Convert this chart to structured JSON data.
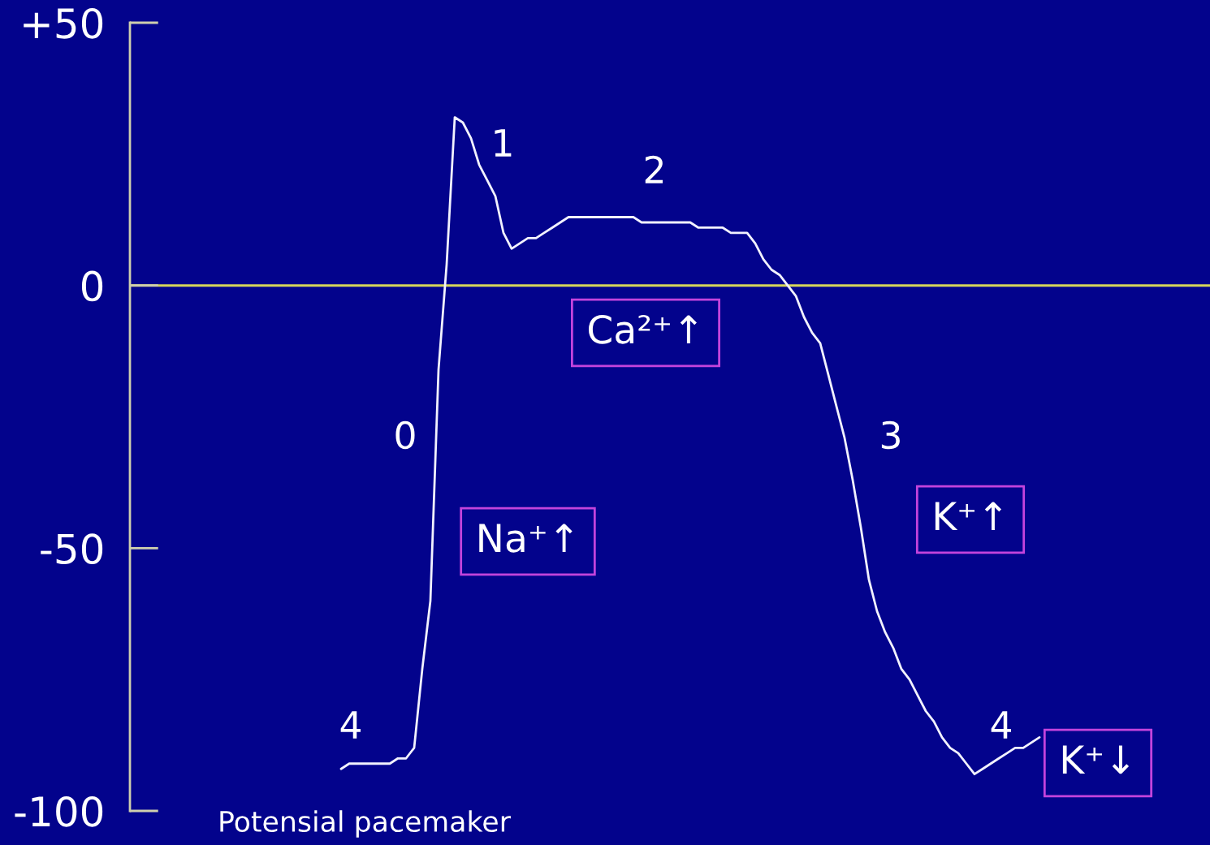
{
  "chart_data": {
    "type": "line",
    "categories": [
      null,
      null,
      null,
      null,
      null,
      null,
      null,
      null,
      null,
      null,
      null,
      null,
      null,
      null,
      null,
      null,
      null,
      null,
      null,
      null,
      null,
      null,
      null,
      null,
      null,
      null,
      null,
      null,
      null,
      null,
      null,
      null,
      null,
      null,
      null,
      null,
      null,
      null,
      null,
      null,
      null,
      null,
      null,
      null,
      null,
      null,
      null,
      null,
      null,
      null,
      null,
      null,
      null,
      null,
      null,
      null,
      null,
      null,
      null,
      null,
      null,
      null,
      null,
      null,
      null,
      null,
      null,
      null,
      null,
      null,
      null,
      null,
      null,
      null,
      null,
      null,
      null,
      null,
      null,
      null,
      null,
      null,
      null,
      null,
      null,
      null,
      null
    ],
    "series": [
      {
        "color": "#f2f2ff",
        "values": [
          -92,
          -91,
          -91,
          -91,
          -91,
          -91,
          -91,
          -90,
          -90,
          -88,
          -73,
          -60,
          -16,
          4,
          32,
          31,
          28,
          23,
          20,
          17,
          10,
          7,
          8,
          9,
          9,
          10,
          11,
          12,
          13,
          13,
          13,
          13,
          13,
          13,
          13,
          13,
          13,
          12,
          12,
          12,
          12,
          12,
          12,
          12,
          11,
          11,
          11,
          11,
          10,
          10,
          10,
          8,
          5,
          3,
          2,
          0,
          -2,
          -6,
          -9,
          -11,
          -17,
          -23,
          -29,
          -37,
          -46,
          -56,
          -62,
          -66,
          -69,
          -73,
          -75,
          -78,
          -81,
          -83,
          -86,
          -88,
          -89,
          -91,
          -93,
          -92,
          -91,
          -90,
          -89,
          -88,
          -88,
          -87,
          -86
        ]
      }
    ],
    "ylim": [
      -100,
      50
    ],
    "yticks": [
      -100,
      -50,
      0,
      {
        "value": 50,
        "label": "+50"
      }
    ],
    "tick_labels": "y",
    "ref_lines": [
      {
        "axis": "y",
        "value": 0,
        "color": "#d6d65a"
      }
    ],
    "marker": "none",
    "line_style": "solid",
    "annotations": [
      "4",
      "0",
      "1",
      "2",
      "3",
      "4",
      "Na⁺↑",
      "Ca²⁺↑",
      "K⁺↑",
      "K⁺↓",
      "Potensial pacemaker"
    ]
  }
}
